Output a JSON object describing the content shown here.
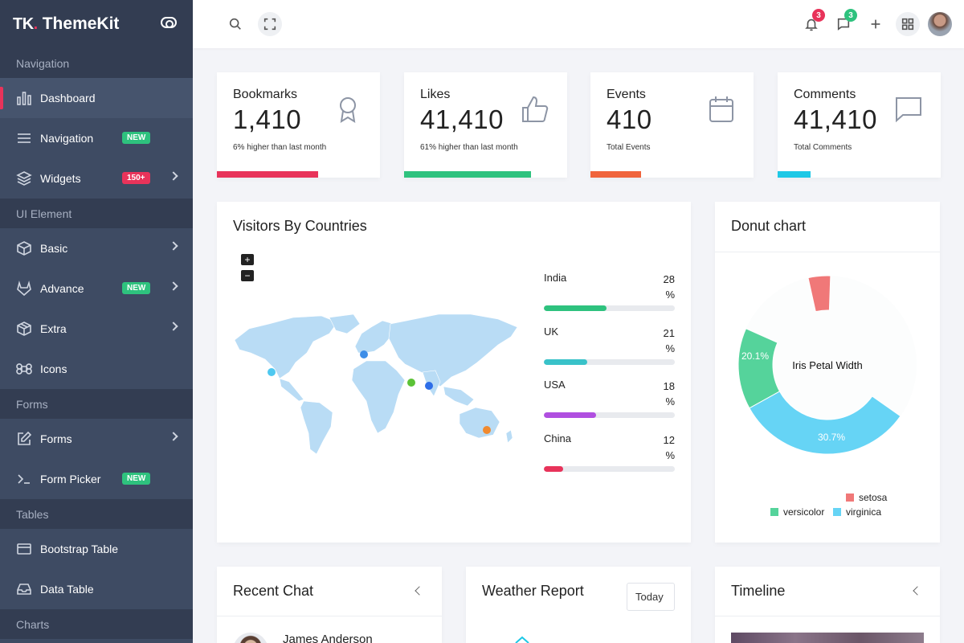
{
  "brand": {
    "logo": "TK",
    "dot": ".",
    "name": "ThemeKit"
  },
  "sidebar": {
    "sections": [
      "Navigation",
      "UI Element",
      "Forms",
      "Tables",
      "Charts"
    ],
    "items": [
      {
        "label": "Dashboard",
        "icon": "bar-chart-icon"
      },
      {
        "label": "Navigation",
        "icon": "menu-icon",
        "badge": "NEW"
      },
      {
        "label": "Widgets",
        "icon": "layers-icon",
        "badge": "150+"
      },
      {
        "label": "Basic",
        "icon": "box-icon"
      },
      {
        "label": "Advance",
        "icon": "gitlab-icon",
        "badge": "NEW"
      },
      {
        "label": "Extra",
        "icon": "package-icon"
      },
      {
        "label": "Icons",
        "icon": "command-icon"
      },
      {
        "label": "Forms",
        "icon": "edit-icon"
      },
      {
        "label": "Form Picker",
        "icon": "terminal-icon",
        "badge": "NEW"
      },
      {
        "label": "Bootstrap Table",
        "icon": "credit-card-icon"
      },
      {
        "label": "Data Table",
        "icon": "inbox-icon"
      }
    ]
  },
  "topbar": {
    "notifications": "3",
    "messages": "3"
  },
  "stats": [
    {
      "label": "Bookmarks",
      "value": "1,410",
      "sub": "6% higher than last month",
      "color": "#e8335a",
      "progress": 0.62
    },
    {
      "label": "Likes",
      "value": "41,410",
      "sub": "61% higher than last month",
      "color": "#2ec27e",
      "progress": 0.78
    },
    {
      "label": "Events",
      "value": "410",
      "sub": "Total Events",
      "color": "#f0643c",
      "progress": 0.31
    },
    {
      "label": "Comments",
      "value": "41,410",
      "sub": "Total Comments",
      "color": "#1ec8e6",
      "progress": 0.2
    }
  ],
  "visitors": {
    "title": "Visitors By Countries",
    "zoom_in": "+",
    "zoom_out": "−",
    "countries": [
      {
        "name": "India",
        "value": "28",
        "unit": "%",
        "percent": 48,
        "color": "#2ec27e"
      },
      {
        "name": "UK",
        "value": "21",
        "unit": "%",
        "percent": 33,
        "color": "#39c2c9"
      },
      {
        "name": "USA",
        "value": "18",
        "unit": "%",
        "percent": 40,
        "color": "#b04fe0"
      },
      {
        "name": "China",
        "value": "12",
        "unit": "%",
        "percent": 15,
        "color": "#e8335a"
      }
    ]
  },
  "donut": {
    "title": "Donut chart",
    "center_label": "Iris Petal Width",
    "chart_data": {
      "type": "pie",
      "title": "Iris Petal Width",
      "slices": [
        {
          "name": "setosa",
          "value": 4.5,
          "label": "",
          "color": "#f07878"
        },
        {
          "name": "versicolor",
          "value": 20.1,
          "label": "20.1%",
          "color": "#55d39b"
        },
        {
          "name": "virginica",
          "value": 30.7,
          "label": "30.7%",
          "color": "#66d4f5"
        }
      ]
    }
  },
  "recent_chat": {
    "title": "Recent Chat",
    "person": "James Anderson"
  },
  "weather": {
    "title": "Weather Report",
    "select": "Today"
  },
  "timeline": {
    "title": "Timeline"
  }
}
